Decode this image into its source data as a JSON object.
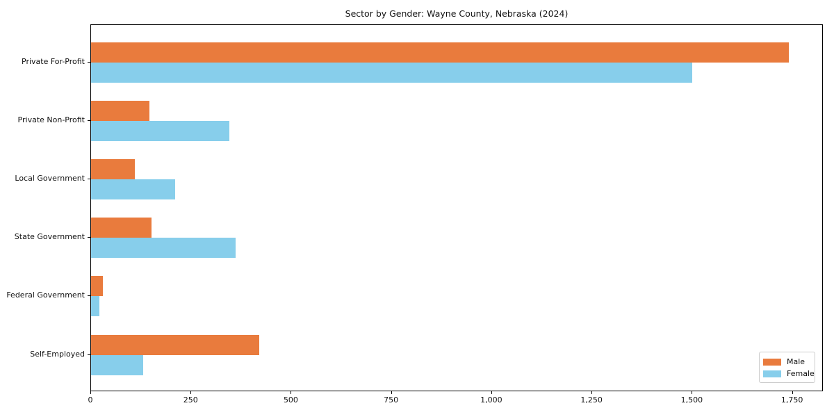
{
  "page": {
    "background_color": "#ffffff"
  },
  "chart_data": {
    "type": "bar",
    "orientation": "horizontal",
    "title": "Sector by Gender: Wayne County, Nebraska (2024)",
    "categories": [
      "Private For-Profit",
      "Private Non-Profit",
      "Local Government",
      "State Government",
      "Federal Government",
      "Self-Employed"
    ],
    "series": [
      {
        "name": "Male",
        "color": "#e97b3d",
        "values": [
          1740,
          145,
          110,
          150,
          30,
          420
        ]
      },
      {
        "name": "Female",
        "color": "#87ceeb",
        "values": [
          1500,
          345,
          210,
          360,
          20,
          130
        ]
      }
    ],
    "xlabel": "",
    "ylabel": "",
    "xlim": [
      0,
      1827
    ],
    "x_ticks": [
      0,
      250,
      500,
      750,
      1000,
      1250,
      1500,
      1750
    ],
    "x_tick_labels": [
      "0",
      "250",
      "500",
      "750",
      "1,000",
      "1,250",
      "1,500",
      "1,750"
    ],
    "grid": false,
    "legend": {
      "position": "lower right",
      "entries": [
        "Male",
        "Female"
      ]
    }
  }
}
